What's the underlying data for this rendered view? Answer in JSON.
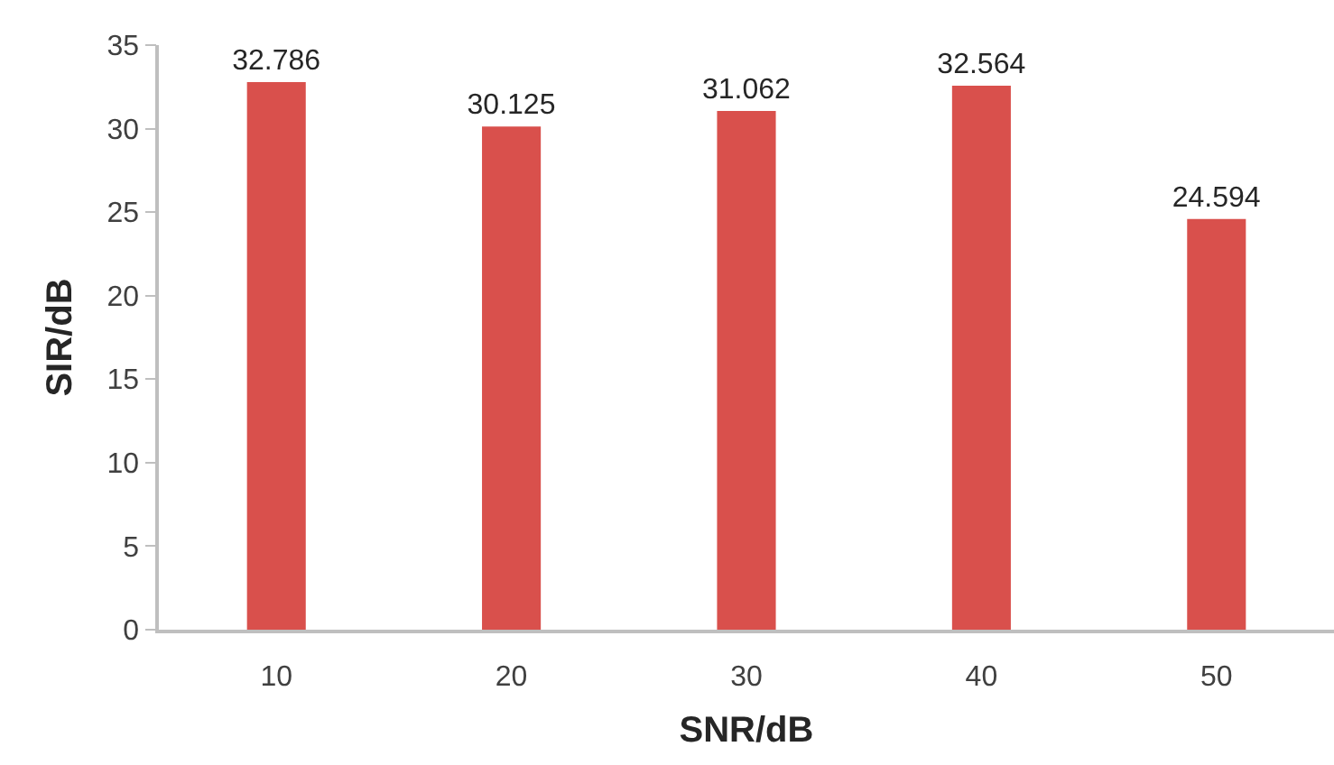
{
  "chart_data": {
    "type": "bar",
    "xlabel": "SNR/dB",
    "ylabel": "SIR/dB",
    "categories": [
      "10",
      "20",
      "30",
      "40",
      "50"
    ],
    "values": [
      32.786,
      30.125,
      31.062,
      32.564,
      24.594
    ],
    "color": "#d9504c",
    "ylim": [
      0,
      35
    ],
    "yticks": [
      0,
      5,
      10,
      15,
      20,
      25,
      30,
      35
    ],
    "data_labels": true
  }
}
